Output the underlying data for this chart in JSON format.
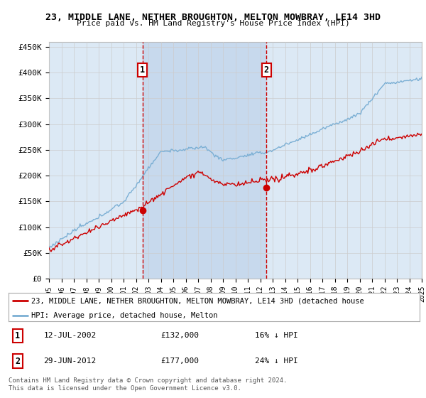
{
  "title": "23, MIDDLE LANE, NETHER BROUGHTON, MELTON MOWBRAY, LE14 3HD",
  "subtitle": "Price paid vs. HM Land Registry's House Price Index (HPI)",
  "hpi_color": "#7bafd4",
  "price_color": "#cc0000",
  "bg_color": "#dce9f5",
  "shade_color": "#c5d8ed",
  "plot_bg": "#ffffff",
  "grid_color": "#cccccc",
  "ylim": [
    0,
    460000
  ],
  "yticks": [
    0,
    50000,
    100000,
    150000,
    200000,
    250000,
    300000,
    350000,
    400000,
    450000
  ],
  "ytick_labels": [
    "£0",
    "£50K",
    "£100K",
    "£150K",
    "£200K",
    "£250K",
    "£300K",
    "£350K",
    "£400K",
    "£450K"
  ],
  "sale1_year": 2002.53,
  "sale1_price": 132000,
  "sale2_year": 2012.49,
  "sale2_price": 177000,
  "legend_line1": "23, MIDDLE LANE, NETHER BROUGHTON, MELTON MOWBRAY, LE14 3HD (detached house",
  "legend_line2": "HPI: Average price, detached house, Melton",
  "footer1": "Contains HM Land Registry data © Crown copyright and database right 2024.",
  "footer2": "This data is licensed under the Open Government Licence v3.0."
}
